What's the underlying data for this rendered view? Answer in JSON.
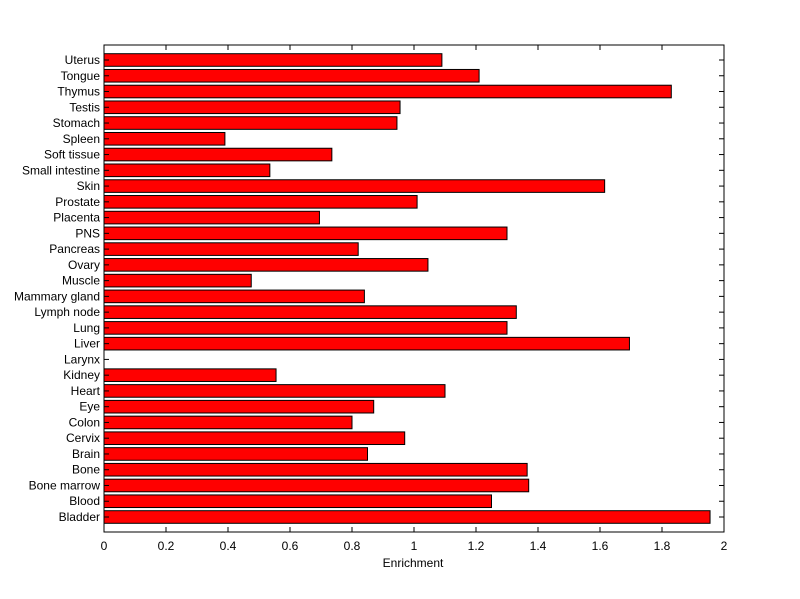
{
  "chart_data": {
    "type": "bar",
    "orientation": "horizontal",
    "title": "",
    "xlabel": "Enrichment",
    "ylabel": "",
    "xlim": [
      0,
      2
    ],
    "xticks": [
      0,
      0.2,
      0.4,
      0.6,
      0.8,
      1,
      1.2,
      1.4,
      1.6,
      1.8,
      2
    ],
    "grid": false,
    "bar_color": "#ff0000",
    "bar_edge_color": "#000000",
    "categories": [
      "Bladder",
      "Blood",
      "Bone marrow",
      "Bone",
      "Brain",
      "Cervix",
      "Colon",
      "Eye",
      "Heart",
      "Kidney",
      "Larynx",
      "Liver",
      "Lung",
      "Lymph node",
      "Mammary gland",
      "Muscle",
      "Ovary",
      "Pancreas",
      "PNS",
      "Placenta",
      "Prostate",
      "Skin",
      "Small intestine",
      "Soft tissue",
      "Spleen",
      "Stomach",
      "Testis",
      "Thymus",
      "Tongue",
      "Uterus"
    ],
    "values": [
      1.955,
      1.25,
      1.37,
      1.365,
      0.85,
      0.97,
      0.8,
      0.87,
      1.1,
      0.555,
      0,
      1.695,
      1.3,
      1.33,
      0.84,
      0.475,
      1.045,
      0.82,
      1.3,
      0.695,
      1.01,
      1.615,
      0.535,
      0.735,
      0.39,
      0.945,
      0.955,
      1.83,
      1.21,
      1.09
    ]
  }
}
